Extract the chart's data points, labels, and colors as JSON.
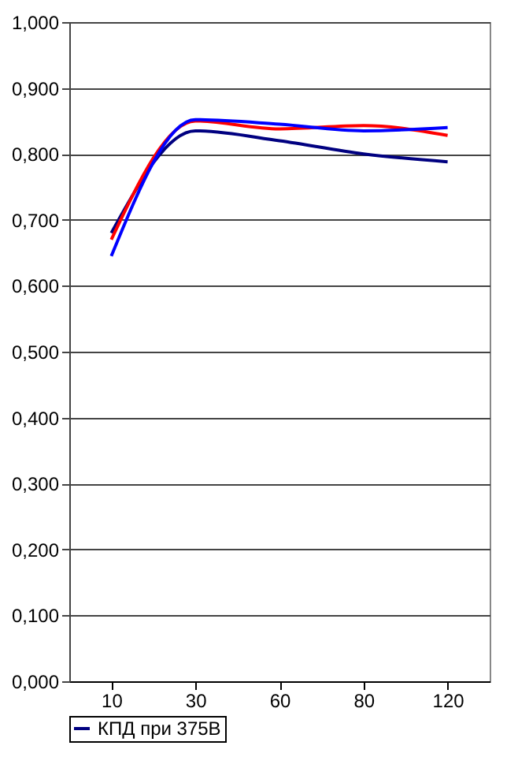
{
  "chart_data": {
    "type": "line",
    "categories": [
      "10",
      "30",
      "60",
      "80",
      "120"
    ],
    "series": [
      {
        "name": "КПД при 375В",
        "color": "#000080",
        "values": [
          0.68,
          0.835,
          0.82,
          0.8,
          0.788
        ]
      },
      {
        "color": "#ff0000",
        "values": [
          0.67,
          0.85,
          0.838,
          0.843,
          0.828
        ]
      },
      {
        "color": "#0000ff",
        "values": [
          0.645,
          0.852,
          0.845,
          0.835,
          0.84
        ]
      }
    ],
    "ylim": [
      0,
      1
    ],
    "yticks": [
      {
        "value": 0,
        "label": "0,000"
      },
      {
        "value": 0.1,
        "label": "0,100"
      },
      {
        "value": 0.2,
        "label": "0,200"
      },
      {
        "value": 0.3,
        "label": "0,300"
      },
      {
        "value": 0.4,
        "label": "0,400"
      },
      {
        "value": 0.5,
        "label": "0,500"
      },
      {
        "value": 0.6,
        "label": "0,600"
      },
      {
        "value": 0.7,
        "label": "0,700"
      },
      {
        "value": 0.8,
        "label": "0,800"
      },
      {
        "value": 0.9,
        "label": "0,900"
      },
      {
        "value": 1,
        "label": "1,000"
      }
    ],
    "grid": "y",
    "legend": "bottom",
    "marker": "none",
    "line_style": "solid"
  }
}
